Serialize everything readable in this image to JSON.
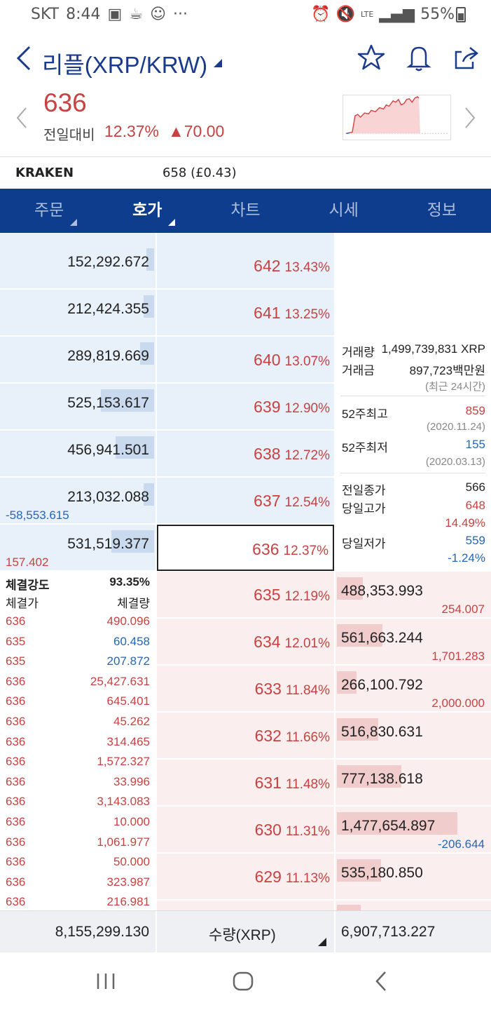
{
  "status": {
    "carrier": "SKT",
    "time": "8:44",
    "lte": "LTE",
    "battery": "55%"
  },
  "header": {
    "title": "리플(XRP/KRW)"
  },
  "quote": {
    "price": "636",
    "change_label": "전일대비",
    "change_pct": "12.37%",
    "change_val": "▲70.00"
  },
  "exchange": {
    "name": "KRAKEN",
    "value": "658 (£0.43)"
  },
  "tabs": [
    "주문",
    "호가",
    "차트",
    "시세",
    "정보"
  ],
  "asks": [
    {
      "qty": "152,292.672",
      "price": "642",
      "pct": "13.43%",
      "bar": 0.05
    },
    {
      "qty": "212,424.355",
      "price": "641",
      "pct": "13.25%",
      "bar": 0.07
    },
    {
      "qty": "289,819.669",
      "price": "640",
      "pct": "13.07%",
      "bar": 0.09
    },
    {
      "qty": "525,153.617",
      "price": "639",
      "pct": "12.90%",
      "bar": 0.35
    },
    {
      "qty": "456,941.501",
      "price": "638",
      "pct": "12.72%",
      "bar": 0.25
    },
    {
      "qty": "213,032.088",
      "price": "637",
      "pct": "12.54%",
      "bar": 0.07,
      "delta": "-58,553.615"
    },
    {
      "qty": "531,519.377",
      "price": "636",
      "pct": "12.37%",
      "bar": 0.28,
      "delta": "157.402"
    }
  ],
  "bids": [
    {
      "qty": "488,353.993",
      "price": "635",
      "pct": "12.19%",
      "bar": 0.17,
      "delta": "254.007"
    },
    {
      "qty": "561,663.244",
      "price": "634",
      "pct": "12.01%",
      "bar": 0.3,
      "delta": "1,701.283"
    },
    {
      "qty": "266,100.792",
      "price": "633",
      "pct": "11.84%",
      "bar": 0.13,
      "delta": "2,000.000"
    },
    {
      "qty": "516,830.631",
      "price": "632",
      "pct": "11.66%",
      "bar": 0.27
    },
    {
      "qty": "777,138.618",
      "price": "631",
      "pct": "11.48%",
      "bar": 0.42
    },
    {
      "qty": "1,477,654.897",
      "price": "630",
      "pct": "11.31%",
      "bar": 0.79,
      "delta": "-206.644"
    },
    {
      "qty": "535,180.850",
      "price": "629",
      "pct": "11.13%",
      "bar": 0.29
    }
  ],
  "info": {
    "vol_label": "거래량",
    "vol_value": "1,499,739,831 XRP",
    "amt_label": "거래금",
    "amt_value": "897,723백만원",
    "recent": "(최근 24시간)",
    "hi52_label": "52주최고",
    "hi52": "859",
    "hi52_date": "(2020.11.24)",
    "lo52_label": "52주최저",
    "lo52": "155",
    "lo52_date": "(2020.03.13)",
    "prev_label": "전일종가",
    "prev": "566",
    "dayhi_label": "당일고가",
    "dayhi": "648",
    "dayhi_pct": "14.49%",
    "daylo_label": "당일저가",
    "daylo": "559",
    "daylo_pct": "-1.24%"
  },
  "trades": {
    "strength_label": "체결강도",
    "strength": "93.35%",
    "col_price": "체결가",
    "col_qty": "체결량",
    "rows": [
      {
        "p": "636",
        "q": "490.096",
        "c": "red"
      },
      {
        "p": "635",
        "q": "60.458",
        "c": "blue"
      },
      {
        "p": "635",
        "q": "207.872",
        "c": "blue"
      },
      {
        "p": "636",
        "q": "25,427.631",
        "c": "red"
      },
      {
        "p": "636",
        "q": "645.401",
        "c": "red"
      },
      {
        "p": "636",
        "q": "45.262",
        "c": "red"
      },
      {
        "p": "636",
        "q": "314.465",
        "c": "red"
      },
      {
        "p": "636",
        "q": "1,572.327",
        "c": "red"
      },
      {
        "p": "636",
        "q": "33.996",
        "c": "red"
      },
      {
        "p": "636",
        "q": "3,143.083",
        "c": "red"
      },
      {
        "p": "636",
        "q": "10.000",
        "c": "red"
      },
      {
        "p": "636",
        "q": "1,061.977",
        "c": "red"
      },
      {
        "p": "636",
        "q": "50.000",
        "c": "red"
      },
      {
        "p": "636",
        "q": "323.987",
        "c": "red"
      },
      {
        "p": "636",
        "q": "216.981",
        "c": "red"
      }
    ]
  },
  "footer": {
    "ask_total": "8,155,299.130",
    "unit": "수량(XRP)",
    "bid_total": "6,907,713.227"
  },
  "colors": {
    "red": "#c84242",
    "blue": "#2266bb",
    "navy": "#0d3d8c"
  }
}
